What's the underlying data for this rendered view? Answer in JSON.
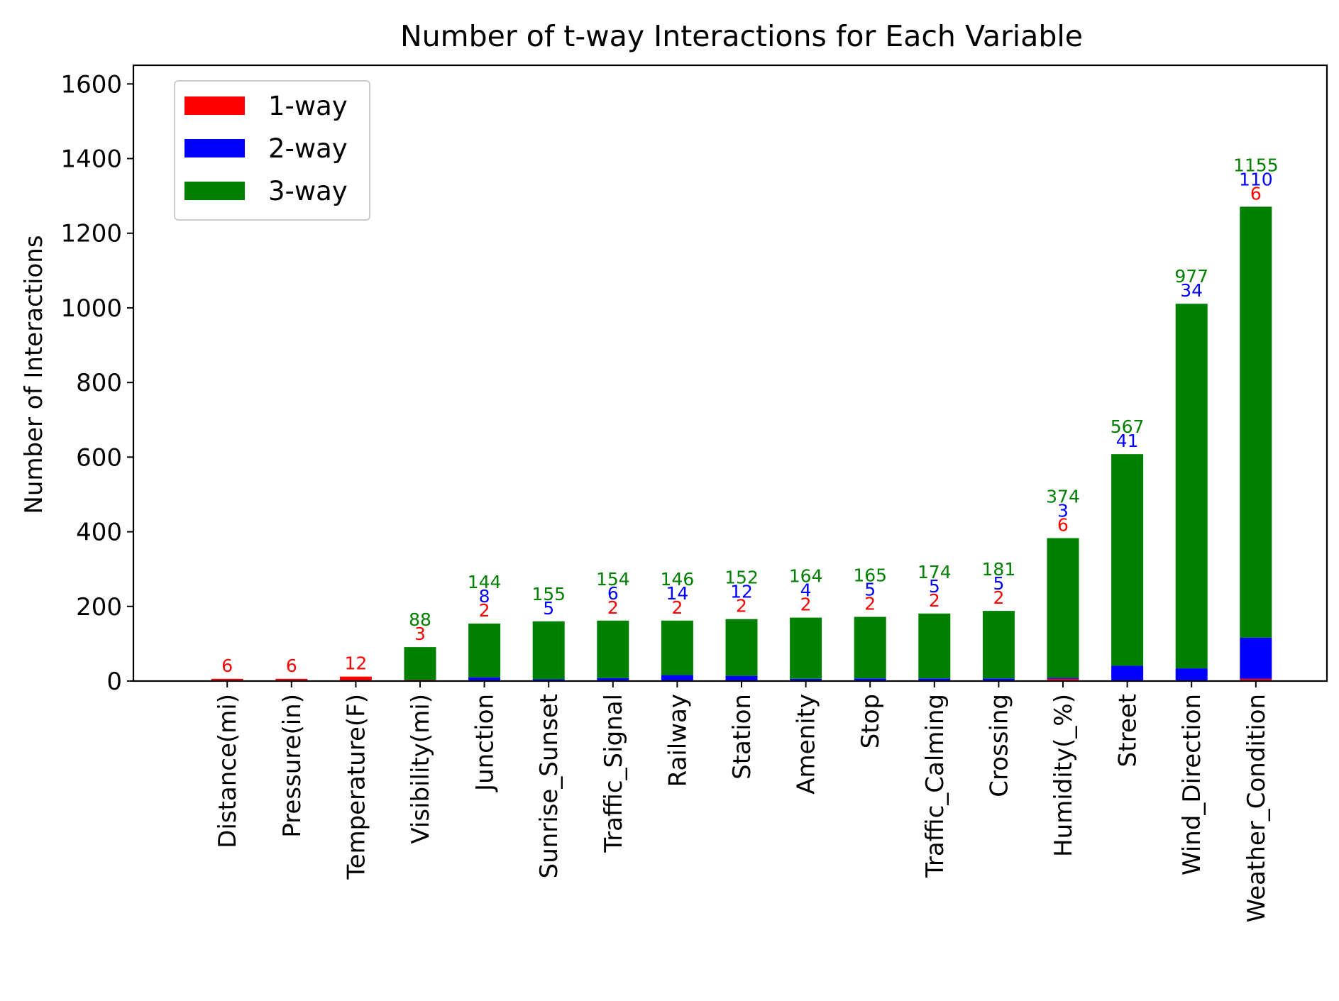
{
  "chart_data": {
    "type": "bar",
    "stacked": true,
    "title": "Number of t-way Interactions for Each Variable",
    "xlabel": "",
    "ylabel": "Number of Interactions",
    "ylim": [
      0,
      1650
    ],
    "yticks": [
      0,
      200,
      400,
      600,
      800,
      1000,
      1200,
      1400,
      1600
    ],
    "legend_position": "top-left",
    "grid": false,
    "categories": [
      "Distance(mi)",
      "Pressure(in)",
      "Temperature(F)",
      "Visibility(mi)",
      "Junction",
      "Sunrise_Sunset",
      "Traffic_Signal",
      "Railway",
      "Station",
      "Amenity",
      "Stop",
      "Traffic_Calming",
      "Crossing",
      "Humidity(_%)",
      "Street",
      "Wind_Direction",
      "Weather_Condition"
    ],
    "series": [
      {
        "name": "1-way",
        "color": "#ff0000",
        "values": [
          6,
          6,
          12,
          3,
          2,
          0,
          2,
          2,
          2,
          2,
          2,
          2,
          2,
          6,
          0,
          0,
          6
        ]
      },
      {
        "name": "2-way",
        "color": "#0000ff",
        "values": [
          0,
          0,
          0,
          0,
          8,
          5,
          6,
          14,
          12,
          4,
          5,
          5,
          5,
          3,
          41,
          34,
          110
        ]
      },
      {
        "name": "3-way",
        "color": "#008000",
        "values": [
          0,
          0,
          0,
          88,
          144,
          155,
          154,
          146,
          152,
          164,
          165,
          174,
          181,
          374,
          567,
          977,
          1155
        ]
      }
    ]
  }
}
